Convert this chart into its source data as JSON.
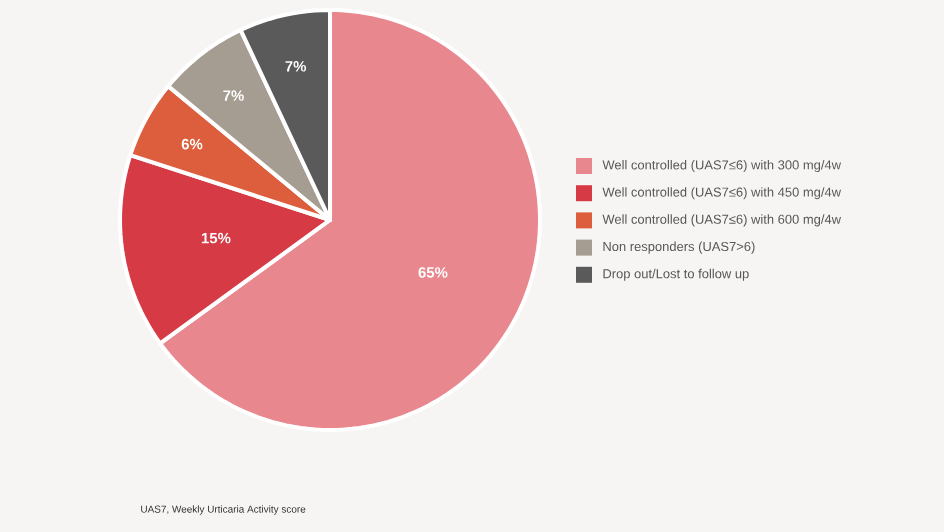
{
  "chart_data": {
    "type": "pie",
    "categories": [
      "Well controlled (UAS7≤6) with 300 mg/4w",
      "Well controlled (UAS7≤6) with 450 mg/4w",
      "Well controlled (UAS7≤6) with 600 mg/4w",
      "Non responders (UAS7>6)",
      "Drop out/Lost to follow up"
    ],
    "values": [
      65,
      15,
      6,
      7,
      7
    ],
    "colors": [
      "#e8888e",
      "#d63a45",
      "#dd5e3c",
      "#a59c92",
      "#5a5a5a"
    ],
    "value_labels": [
      "65%",
      "15%",
      "6%",
      "7%",
      "7%"
    ],
    "legend": "right",
    "annotations": [
      "UAS7, Weekly Urticaria Activity score"
    ]
  }
}
